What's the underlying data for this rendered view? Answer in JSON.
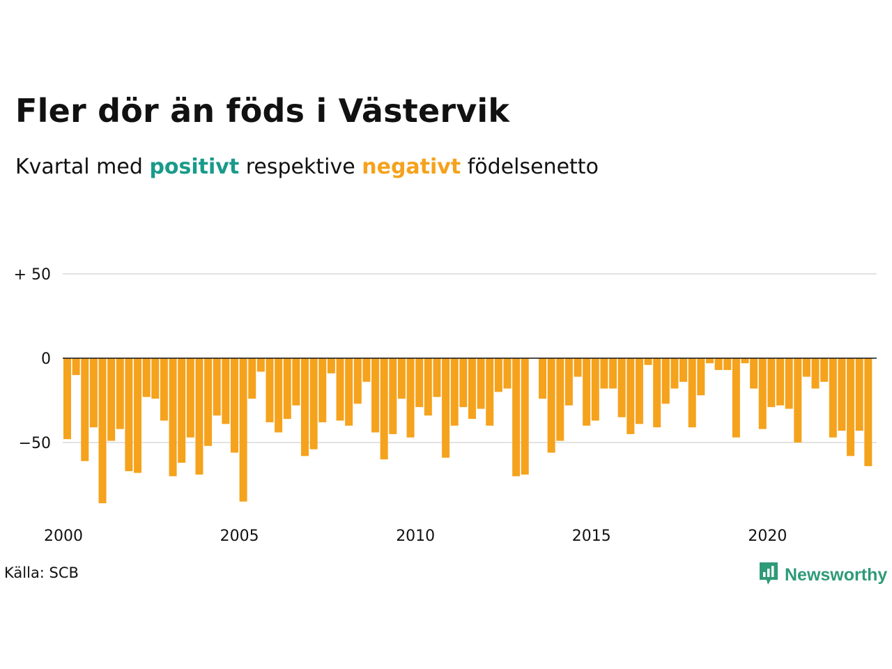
{
  "title": "Fler dör än föds i Västervik",
  "subtitle": {
    "prefix": "Kvartal med",
    "positive": "positivt",
    "middle": "respektive",
    "negative": "negativt",
    "suffix": "födelsenetto"
  },
  "source": "Källa: SCB",
  "logo": {
    "text": "Newsworthy",
    "icon": "newsworthy-logo-icon"
  },
  "colors": {
    "positive": "#1a9a8a",
    "negative": "#f5a21d",
    "grid": "#e3e3e3",
    "zero_line": "#111111",
    "logo": "#2f9a78"
  },
  "chart_data": {
    "type": "bar",
    "title": "Fler dör än föds i Västervik",
    "subtitle": "Kvartal med positivt respektive negativt födelsenetto",
    "xlabel": "",
    "ylabel": "",
    "x_start": 2000,
    "periods_per_year": 4,
    "xticks": [
      "2000",
      "2005",
      "2010",
      "2015",
      "2020"
    ],
    "yticks": [
      {
        "value": 50,
        "label": "+ 50"
      },
      {
        "value": 0,
        "label": "0"
      },
      {
        "value": -50,
        "label": "−50"
      }
    ],
    "ylim": [
      -95,
      58
    ],
    "grid": true,
    "values": [
      -48,
      -10,
      -61,
      -41,
      -86,
      -49,
      -42,
      -67,
      -68,
      -23,
      -24,
      -37,
      -70,
      -62,
      -47,
      -69,
      -52,
      -34,
      -39,
      -56,
      -85,
      -24,
      -8,
      -38,
      -44,
      -36,
      -28,
      -58,
      -54,
      -38,
      -9,
      -37,
      -40,
      -27,
      -14,
      -44,
      -60,
      -45,
      -24,
      -47,
      -29,
      -34,
      -23,
      -59,
      -40,
      -29,
      -36,
      -30,
      -40,
      -20,
      -18,
      -70,
      -69,
      0,
      -24,
      -56,
      -49,
      -28,
      -11,
      -40,
      -37,
      -18,
      -18,
      -35,
      -45,
      -39,
      -4,
      -41,
      -27,
      -18,
      -14,
      -41,
      -22,
      -3,
      -7,
      -7,
      -47,
      -3,
      -18,
      -42,
      -29,
      -28,
      -30,
      -50,
      -11,
      -18,
      -14,
      -47,
      -43,
      -58,
      -43,
      -64
    ]
  }
}
